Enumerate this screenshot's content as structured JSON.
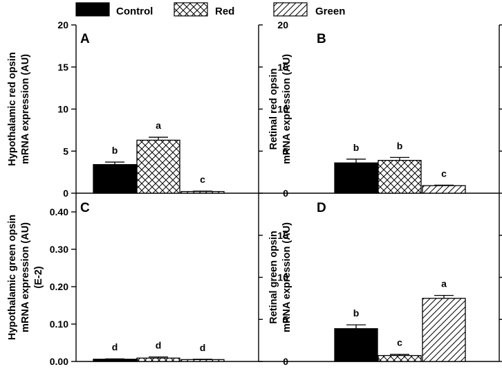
{
  "legend": {
    "items": [
      {
        "label": "Control",
        "pattern": "solid"
      },
      {
        "label": "Red",
        "pattern": "crosshatch"
      },
      {
        "label": "Green",
        "pattern": "diagonal"
      }
    ]
  },
  "colors": {
    "ink": "#000000",
    "background": "#ffffff"
  },
  "chart_data": [
    {
      "type": "bar",
      "panel": "A",
      "ylabel_lines": [
        "Hypothalamic red opsin",
        "mRNA expression (AU)"
      ],
      "categories": [
        "Control",
        "Red",
        "Green"
      ],
      "values": [
        3.4,
        6.3,
        0.2
      ],
      "errors": [
        0.3,
        0.35,
        0.05
      ],
      "letters": [
        "b",
        "a",
        "c"
      ],
      "ylim": [
        0,
        20
      ],
      "yticks": [
        0,
        5,
        10,
        15,
        20
      ],
      "ytick_labels": [
        "0",
        "5",
        "10",
        "15",
        "20"
      ],
      "axis_side": "left"
    },
    {
      "type": "bar",
      "panel": "B",
      "ylabel_lines": [
        "Retinal red opsin",
        "mRNA expression (AU)"
      ],
      "categories": [
        "Control",
        "Red",
        "Green"
      ],
      "values": [
        3.6,
        3.9,
        0.9
      ],
      "errors": [
        0.45,
        0.35,
        0.05
      ],
      "letters": [
        "b",
        "b",
        "c"
      ],
      "ylim": [
        0,
        20
      ],
      "yticks": [
        0,
        5,
        10,
        15,
        20
      ],
      "ytick_labels": [
        "0",
        "5",
        "10",
        "15",
        "20"
      ],
      "axis_side": "right"
    },
    {
      "type": "bar",
      "panel": "C",
      "ylabel_lines": [
        "Hypothalamic green opsin",
        "mRNA expression (AU)",
        "(E-2)"
      ],
      "categories": [
        "Control",
        "Red",
        "Green"
      ],
      "values": [
        0.006,
        0.009,
        0.005
      ],
      "errors": [
        0.001,
        0.003,
        0.001
      ],
      "letters": [
        "d",
        "d",
        "d"
      ],
      "ylim": [
        0,
        0.45
      ],
      "yticks": [
        0,
        0.1,
        0.2,
        0.3,
        0.4
      ],
      "ytick_labels": [
        "0.00",
        "0.10",
        "0.20",
        "0.30",
        "0.40"
      ],
      "axis_side": "left"
    },
    {
      "type": "bar",
      "panel": "D",
      "ylabel_lines": [
        "Retinal green opsin",
        "mRNA expression (AU)"
      ],
      "categories": [
        "Control",
        "Red",
        "Green"
      ],
      "values": [
        3.9,
        0.7,
        7.5
      ],
      "errors": [
        0.45,
        0.15,
        0.35
      ],
      "letters": [
        "b",
        "c",
        "a"
      ],
      "ylim": [
        0,
        20
      ],
      "yticks": [
        0,
        5,
        10,
        15
      ],
      "ytick_labels": [
        "0",
        "5",
        "10",
        "15"
      ],
      "axis_side": "right"
    }
  ]
}
